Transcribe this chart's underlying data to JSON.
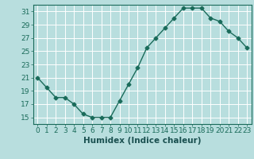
{
  "x": [
    0,
    1,
    2,
    3,
    4,
    5,
    6,
    7,
    8,
    9,
    10,
    11,
    12,
    13,
    14,
    15,
    16,
    17,
    18,
    19,
    20,
    21,
    22,
    23
  ],
  "y": [
    21,
    19.5,
    18,
    18,
    17,
    15.5,
    15,
    15,
    15,
    17.5,
    20,
    22.5,
    25.5,
    27,
    28.5,
    30,
    31.5,
    31.5,
    31.5,
    30,
    29.5,
    28,
    27,
    25.5
  ],
  "line_color": "#1a6b5a",
  "marker": "D",
  "marker_size": 2.5,
  "bg_color": "#b8dede",
  "grid_color": "#ffffff",
  "xlabel": "Humidex (Indice chaleur)",
  "xlabel_fontsize": 7.5,
  "tick_fontsize": 6.5,
  "ylim": [
    14,
    32
  ],
  "yticks": [
    15,
    17,
    19,
    21,
    23,
    25,
    27,
    29,
    31
  ],
  "xticks": [
    0,
    1,
    2,
    3,
    4,
    5,
    6,
    7,
    8,
    9,
    10,
    11,
    12,
    13,
    14,
    15,
    16,
    17,
    18,
    19,
    20,
    21,
    22,
    23
  ],
  "xlim": [
    -0.5,
    23.5
  ]
}
